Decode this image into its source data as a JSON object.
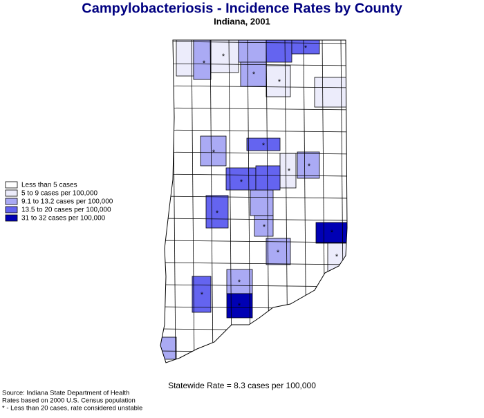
{
  "header": {
    "title": "Campylobacteriosis - Incidence Rates by County",
    "subtitle": "Indiana, 2001"
  },
  "legend": [
    {
      "label": "Less than 5 cases",
      "color": "#ffffff"
    },
    {
      "label": "5 to 9 cases per 100,000",
      "color": "#ececfb"
    },
    {
      "label": "9.1 to 13.2 cases per 100,000",
      "color": "#aaaaf4"
    },
    {
      "label": "13.5 to 20 cases per 100,000",
      "color": "#6464f0"
    },
    {
      "label": "31 to 32 cases per 100,000",
      "color": "#0000b4"
    }
  ],
  "unstable_marker": "*",
  "statewide": "Statewide Rate = 8.3 cases per 100,000",
  "notes": [
    "Source: Indiana State Department of Health",
    "Rates based on 2000 U.S. Census population",
    "* - Less than 20 cases, rate considered unstable"
  ]
}
